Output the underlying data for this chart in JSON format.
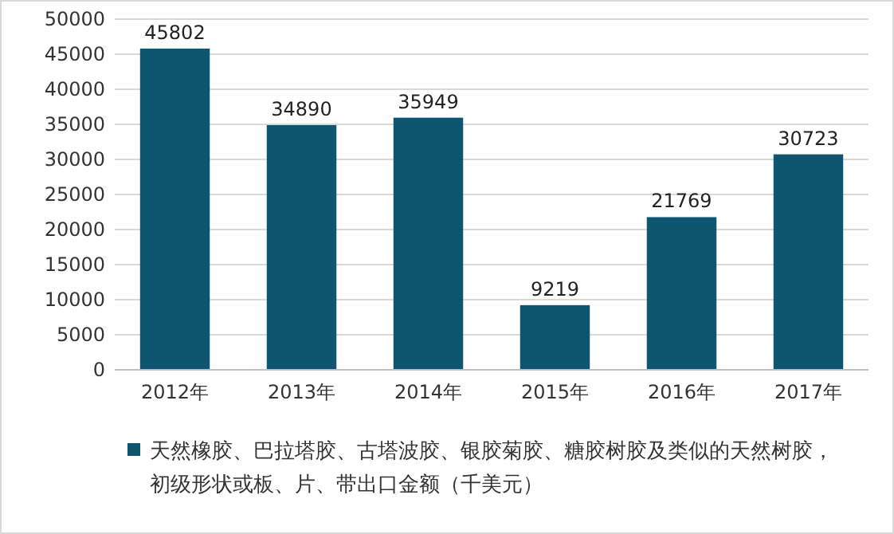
{
  "chart_data": {
    "type": "bar",
    "categories": [
      "2012年",
      "2013年",
      "2014年",
      "2015年",
      "2016年",
      "2017年"
    ],
    "series": [
      {
        "name": "天然橡胶、巴拉塔胶、古塔波胶、银胶菊胶、糖胶树胶及类似的天然树胶，初级形状或板、片、带出口金额（千美元）",
        "color": "#0e5670",
        "values": [
          45802,
          34890,
          35949,
          9219,
          21769,
          30723
        ]
      }
    ],
    "ylim": [
      0,
      50000
    ],
    "yticks": [
      0,
      5000,
      10000,
      15000,
      20000,
      25000,
      30000,
      35000,
      40000,
      45000,
      50000
    ],
    "grid": "y",
    "legend": "bottom",
    "data_labels": true
  }
}
